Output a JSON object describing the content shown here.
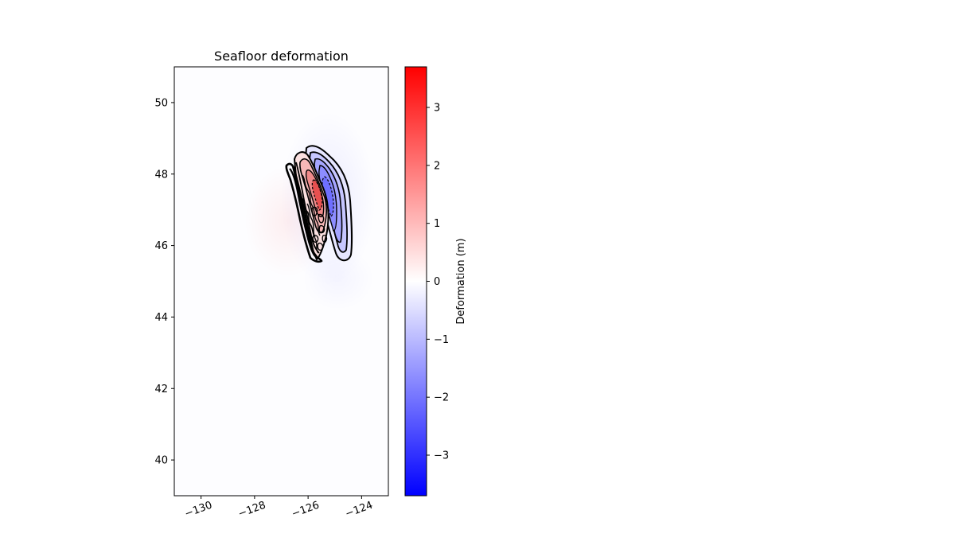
{
  "chart_data": {
    "type": "heatmap",
    "title": "Seafloor deformation",
    "xlabel": "",
    "ylabel": "",
    "xlim": [
      -131.0,
      -123.0
    ],
    "ylim": [
      39.0,
      51.0
    ],
    "x_ticks": [
      -130,
      -128,
      -126,
      -124
    ],
    "x_tick_labels": [
      "−130",
      "−128",
      "−126",
      "−124"
    ],
    "y_ticks": [
      40,
      42,
      44,
      46,
      48,
      50
    ],
    "y_tick_labels": [
      "40",
      "42",
      "44",
      "46",
      "48",
      "50"
    ],
    "grid": false,
    "colormap": "bwr",
    "colors": {
      "negative": "#0000ff",
      "zero": "#ffffff",
      "positive": "#ff0000",
      "contour": "#000000"
    },
    "colorbar": {
      "label": "Deformation (m)",
      "range": [
        -3.7,
        3.7
      ],
      "ticks": [
        -3,
        -2,
        -1,
        0,
        1,
        2,
        3
      ],
      "tick_labels": [
        "−3",
        "−2",
        "−1",
        "0",
        "1",
        "2",
        "3"
      ]
    },
    "features": [
      {
        "name": "uplift",
        "sign": "positive",
        "center_lon": -125.45,
        "center_lat": 47.2,
        "peak": 3.5
      },
      {
        "name": "subsidence",
        "sign": "negative",
        "center_lon": -124.55,
        "center_lat": 47.0,
        "peak": -1.6
      }
    ]
  }
}
